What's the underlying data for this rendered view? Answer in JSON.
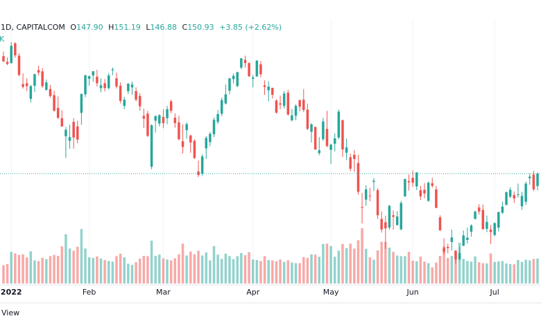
{
  "chart_data": {
    "type": "candlestick",
    "legend": {
      "symbol": "1D, CAPITALCOM",
      "fields": [
        {
          "label": "O",
          "value": "147.90"
        },
        {
          "label": "H",
          "value": "151.19"
        },
        {
          "label": "L",
          "value": "146.88"
        },
        {
          "label": "C",
          "value": "150.93"
        }
      ],
      "change": "+3.85 (+2.62%)",
      "volume": "K"
    },
    "footer": "View",
    "up_color": "#26a69a",
    "down_color": "#ef5350",
    "ylim": [
      124.2,
      188.1
    ],
    "y2lim": [
      0,
      200
    ],
    "categories": [
      null,
      null,
      "2022",
      null,
      null,
      null,
      null,
      null,
      null,
      null,
      null,
      null,
      null,
      null,
      null,
      null,
      null,
      null,
      null,
      null,
      null,
      null,
      "Feb",
      null,
      null,
      null,
      null,
      null,
      null,
      null,
      null,
      null,
      null,
      null,
      null,
      null,
      null,
      null,
      null,
      null,
      null,
      "Mar",
      null,
      null,
      null,
      null,
      null,
      null,
      null,
      null,
      null,
      null,
      null,
      null,
      null,
      null,
      null,
      null,
      null,
      null,
      null,
      null,
      null,
      null,
      "Apr",
      null,
      null,
      null,
      null,
      null,
      null,
      null,
      null,
      null,
      null,
      null,
      null,
      null,
      null,
      null,
      null,
      null,
      null,
      null,
      "May",
      null,
      null,
      null,
      null,
      null,
      null,
      null,
      null,
      null,
      null,
      null,
      null,
      null,
      null,
      null,
      null,
      null,
      null,
      null,
      null,
      "Jun",
      null,
      null,
      null,
      null,
      null,
      null,
      null,
      null,
      null,
      null,
      null,
      null,
      null,
      null,
      null,
      null,
      null,
      null,
      null,
      null,
      "Jul",
      null,
      null,
      null,
      null,
      null,
      null,
      null,
      null,
      null,
      null,
      null
    ],
    "candles": [
      [
        179.5,
        180.6,
        178.1,
        178.2
      ],
      [
        178.1,
        179.2,
        177.3,
        177.6
      ],
      [
        177.8,
        182.9,
        177.7,
        182.0
      ],
      [
        182.6,
        182.9,
        179.1,
        179.7
      ],
      [
        179.6,
        180.2,
        174.6,
        174.9
      ],
      [
        172.7,
        175.3,
        171.6,
        172.0
      ],
      [
        172.9,
        174.1,
        171.0,
        172.2
      ],
      [
        169.1,
        172.5,
        168.2,
        172.2
      ],
      [
        172.3,
        175.2,
        170.8,
        175.1
      ],
      [
        176.1,
        177.2,
        174.8,
        175.5
      ],
      [
        175.8,
        176.6,
        171.8,
        172.2
      ],
      [
        171.3,
        173.8,
        171.1,
        173.1
      ],
      [
        171.5,
        172.5,
        169.4,
        169.8
      ],
      [
        170.0,
        171.1,
        166.0,
        166.2
      ],
      [
        166.9,
        169.7,
        164.2,
        164.5
      ],
      [
        164.4,
        166.3,
        162.3,
        162.4
      ],
      [
        160.0,
        162.3,
        154.7,
        161.6
      ],
      [
        158.9,
        162.8,
        157.0,
        159.8
      ],
      [
        163.5,
        164.4,
        157.0,
        159.7
      ],
      [
        162.4,
        163.8,
        158.3,
        159.2
      ],
      [
        165.7,
        170.4,
        162.8,
        170.3
      ],
      [
        170.2,
        175.0,
        169.5,
        174.8
      ],
      [
        174.0,
        174.8,
        172.3,
        174.6
      ],
      [
        174.8,
        175.9,
        173.3,
        175.8
      ],
      [
        174.5,
        176.2,
        172.1,
        172.9
      ],
      [
        171.7,
        174.1,
        170.7,
        172.4
      ],
      [
        172.9,
        173.9,
        170.9,
        171.7
      ],
      [
        171.7,
        175.4,
        171.4,
        174.8
      ],
      [
        176.1,
        176.7,
        174.9,
        176.3
      ],
      [
        174.1,
        175.5,
        171.6,
        172.1
      ],
      [
        172.3,
        173.1,
        168.0,
        168.6
      ],
      [
        167.4,
        169.6,
        166.6,
        168.9
      ],
      [
        170.97,
        172.9,
        170.3,
        172.8
      ],
      [
        171.9,
        173.3,
        170.1,
        172.6
      ],
      [
        171.0,
        171.9,
        168.5,
        168.9
      ],
      [
        169.8,
        170.5,
        166.2,
        167.3
      ],
      [
        164.98,
        166.7,
        162.0,
        164.3
      ],
      [
        165.5,
        166.2,
        159.8,
        160.1
      ],
      [
        152.6,
        162.9,
        152.0,
        162.7
      ],
      [
        163.8,
        165.1,
        160.9,
        164.9
      ],
      [
        163.1,
        165.4,
        162.4,
        165.1
      ],
      [
        164.7,
        166.6,
        161.97,
        163.2
      ],
      [
        164.4,
        167.4,
        162.95,
        166.6
      ],
      [
        168.5,
        168.9,
        165.6,
        166.2
      ],
      [
        164.5,
        165.6,
        162.1,
        163.2
      ],
      [
        163.4,
        165.0,
        159.0,
        159.3
      ],
      [
        158.8,
        162.9,
        155.8,
        157.4
      ],
      [
        161.5,
        163.4,
        159.4,
        162.95
      ],
      [
        160.2,
        160.4,
        155.98,
        158.5
      ],
      [
        158.9,
        159.3,
        154.5,
        154.7
      ],
      [
        151.45,
        154.1,
        150.1,
        150.6
      ],
      [
        150.9,
        155.6,
        150.4,
        155.1
      ],
      [
        157.05,
        160.0,
        154.5,
        159.6
      ],
      [
        158.6,
        161.0,
        157.6,
        160.6
      ],
      [
        160.5,
        164.5,
        159.8,
        164.0
      ],
      [
        163.5,
        166.4,
        163.0,
        165.4
      ],
      [
        165.5,
        169.4,
        164.9,
        168.8
      ],
      [
        167.99,
        172.6,
        167.7,
        170.2
      ],
      [
        171.1,
        174.1,
        170.2,
        174.1
      ],
      [
        173.9,
        175.3,
        172.8,
        174.7
      ],
      [
        172.2,
        175.7,
        172.0,
        175.6
      ],
      [
        176.7,
        179.0,
        176.3,
        178.96
      ],
      [
        178.6,
        179.6,
        176.7,
        177.8
      ],
      [
        177.8,
        178.0,
        174.4,
        174.6
      ],
      [
        174.0,
        174.9,
        171.9,
        174.3
      ],
      [
        174.6,
        178.5,
        174.4,
        178.4
      ],
      [
        177.5,
        178.3,
        174.4,
        175.1
      ],
      [
        172.4,
        173.6,
        170.1,
        172.0
      ],
      [
        171.2,
        173.4,
        168.5,
        172.1
      ],
      [
        171.8,
        171.8,
        169.2,
        170.1
      ],
      [
        168.7,
        169.0,
        165.5,
        165.75
      ],
      [
        168.0,
        169.9,
        166.6,
        167.7
      ],
      [
        167.4,
        171.0,
        166.8,
        170.4
      ],
      [
        170.6,
        171.3,
        165.0,
        165.3
      ],
      [
        163.9,
        166.6,
        163.6,
        165.1
      ],
      [
        165.0,
        167.8,
        163.9,
        167.4
      ],
      [
        168.8,
        168.9,
        166.1,
        167.2
      ],
      [
        168.9,
        171.5,
        165.9,
        166.4
      ],
      [
        166.5,
        167.9,
        161.5,
        161.8
      ],
      [
        161.1,
        163.2,
        158.5,
        162.9
      ],
      [
        162.3,
        162.3,
        156.7,
        156.8
      ],
      [
        155.9,
        159.8,
        155.4,
        156.6
      ],
      [
        159.3,
        164.5,
        158.9,
        163.6
      ],
      [
        161.8,
        166.2,
        157.3,
        157.65
      ],
      [
        156.7,
        158.2,
        153.3,
        157.96
      ],
      [
        158.2,
        160.7,
        156.3,
        159.5
      ],
      [
        159.7,
        166.5,
        159.3,
        166.0
      ],
      [
        163.9,
        164.1,
        154.95,
        156.8
      ],
      [
        156.0,
        159.4,
        154.2,
        157.3
      ],
      [
        154.9,
        155.8,
        151.5,
        152.1
      ],
      [
        155.5,
        156.7,
        151.4,
        154.5
      ],
      [
        153.5,
        155.5,
        145.8,
        146.5
      ],
      [
        142.8,
        146.2,
        138.8,
        142.6
      ],
      [
        144.6,
        148.1,
        143.1,
        147.1
      ],
      [
        145.6,
        147.5,
        144.2,
        145.5
      ],
      [
        148.9,
        149.8,
        146.7,
        149.2
      ],
      [
        146.9,
        147.4,
        139.9,
        140.8
      ],
      [
        139.9,
        141.7,
        136.6,
        137.35
      ],
      [
        139.1,
        140.7,
        132.6,
        137.6
      ],
      [
        137.8,
        143.3,
        137.3,
        143.1
      ],
      [
        140.8,
        141.97,
        137.3,
        140.4
      ],
      [
        138.4,
        141.8,
        138.3,
        140.5
      ],
      [
        137.4,
        144.3,
        137.1,
        143.8
      ],
      [
        145.4,
        149.7,
        145.3,
        149.6
      ],
      [
        149.1,
        150.7,
        146.8,
        148.8
      ],
      [
        149.9,
        151.7,
        147.7,
        148.7
      ],
      [
        147.8,
        151.3,
        146.9,
        151.2
      ],
      [
        146.9,
        147.97,
        144.5,
        145.4
      ],
      [
        147.0,
        148.6,
        144.9,
        146.1
      ],
      [
        144.3,
        149.0,
        144.1,
        148.7
      ],
      [
        148.6,
        149.9,
        147.5,
        147.96
      ],
      [
        147.1,
        147.95,
        142.5,
        142.6
      ],
      [
        140.3,
        140.8,
        137.1,
        137.1
      ],
      [
        132.9,
        135.2,
        131.4,
        131.9
      ],
      [
        133.1,
        133.9,
        131.5,
        132.8
      ],
      [
        134.3,
        137.3,
        132.2,
        135.4
      ],
      [
        132.1,
        132.4,
        129.0,
        130.1
      ],
      [
        130.1,
        133.1,
        129.8,
        131.6
      ],
      [
        133.4,
        137.1,
        133.3,
        135.9
      ],
      [
        134.8,
        137.8,
        133.9,
        135.35
      ],
      [
        136.8,
        138.6,
        135.6,
        138.3
      ],
      [
        139.9,
        141.9,
        139.8,
        141.7
      ],
      [
        142.7,
        143.5,
        140.97,
        141.7
      ],
      [
        142.1,
        143.4,
        137.3,
        137.4
      ],
      [
        137.5,
        140.7,
        136.7,
        139.2
      ],
      [
        137.3,
        138.4,
        133.8,
        136.7
      ],
      [
        136.0,
        139.0,
        135.7,
        138.9
      ],
      [
        137.8,
        141.6,
        136.9,
        141.6
      ],
      [
        141.4,
        144.1,
        141.1,
        142.9
      ],
      [
        143.3,
        146.6,
        143.3,
        146.4
      ],
      [
        145.3,
        147.6,
        145.0,
        147.0
      ],
      [
        145.7,
        146.6,
        143.8,
        144.9
      ],
      [
        145.8,
        148.5,
        145.1,
        145.9
      ],
      [
        142.99,
        146.5,
        142.1,
        145.5
      ],
      [
        144.1,
        148.95,
        143.3,
        148.5
      ],
      [
        149.8,
        150.9,
        148.2,
        150.2
      ],
      [
        150.7,
        151.6,
        146.7,
        147.1
      ],
      [
        147.9,
        151.19,
        146.88,
        150.93
      ]
    ],
    "volume": [
      60,
      64,
      104,
      99,
      94,
      96,
      86,
      106,
      76,
      74,
      84,
      80,
      90,
      94,
      91,
      122,
      162,
      115,
      108,
      121,
      179,
      115,
      86,
      84,
      89,
      82,
      77,
      74,
      72,
      90,
      98,
      86,
      65,
      61,
      70,
      82,
      91,
      90,
      141,
      91,
      95,
      83,
      79,
      76,
      83,
      96,
      131,
      92,
      105,
      96,
      108,
      92,
      102,
      76,
      123,
      95,
      81,
      98,
      90,
      80,
      90,
      100,
      93,
      103,
      79,
      77,
      74,
      90,
      77,
      76,
      73,
      79,
      71,
      76,
      69,
      67,
      67,
      87,
      84,
      96,
      95,
      88,
      130,
      131,
      123,
      88,
      108,
      130,
      116,
      131,
      115,
      142,
      182,
      114,
      86,
      78,
      109,
      137,
      137,
      118,
      104,
      92,
      90,
      90,
      104,
      75,
      73,
      88,
      72,
      67,
      53,
      69,
      91,
      122,
      84,
      91,
      108,
      134,
      81,
      74,
      72,
      89,
      70,
      67,
      66,
      99,
      71,
      73,
      74,
      66,
      64,
      63,
      77,
      71,
      78,
      76,
      81,
      82
    ]
  }
}
